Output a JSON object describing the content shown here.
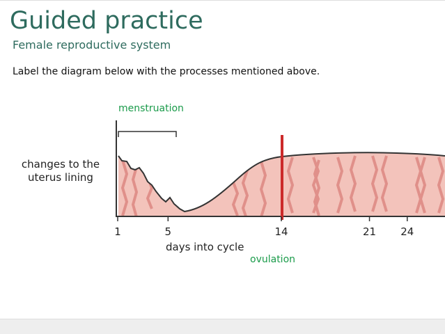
{
  "header": {
    "title": "Guided practice",
    "subtitle": "Female reproductive system"
  },
  "instruction": "Label the diagram below with the processes mentioned above.",
  "diagram": {
    "y_label": [
      "changes to the",
      "uterus lining"
    ],
    "x_label": "days into cycle",
    "x_ticks": [
      1,
      5,
      14,
      21,
      24
    ],
    "annotations": {
      "menstruation": "menstruation",
      "ovulation": "ovulation"
    }
  }
}
